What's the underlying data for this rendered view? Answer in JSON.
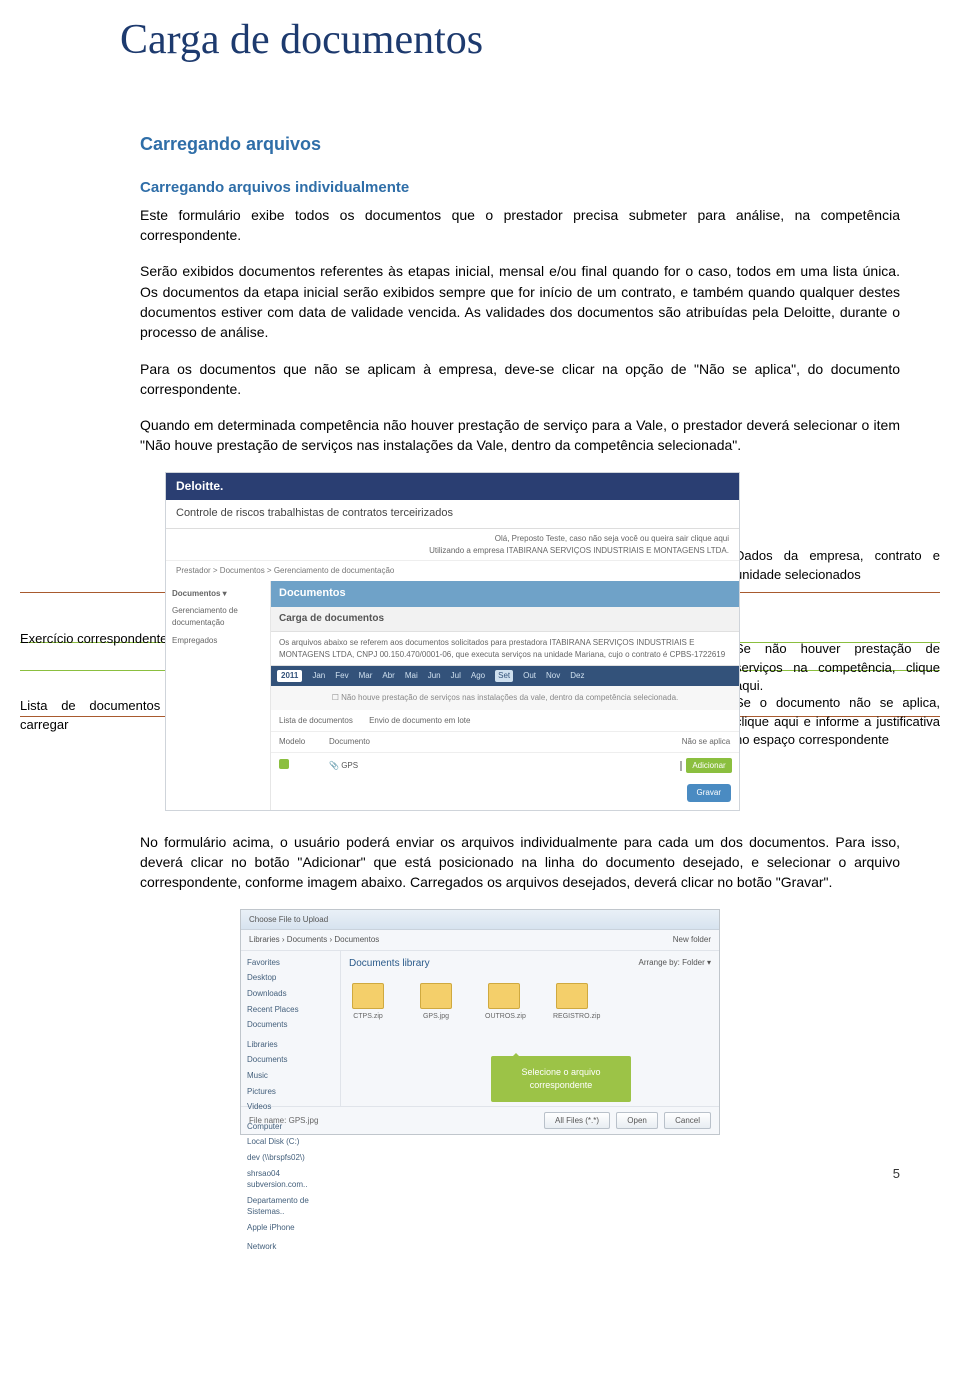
{
  "colors": {
    "title": "#1d3a6e",
    "heading": "#2f6ea8",
    "guide_green": "#8bbf3f",
    "guide_orange": "#a85a2e",
    "deloitte_bar": "#2a3e72",
    "panel_header": "#6fa2c8",
    "months_bar": "#33527a",
    "balloon": "#9cc347"
  },
  "title": "Carga de documentos",
  "h2": "Carregando arquivos",
  "h3": "Carregando arquivos individualmente",
  "para1": "Este formulário exibe todos os documentos que o prestador precisa submeter para análise, na competência correspondente.",
  "para2": "Serão exibidos documentos referentes às etapas inicial, mensal e/ou final quando for o caso, todos em uma lista única. Os documentos da etapa inicial serão exibidos sempre que for início de um contrato, e também quando qualquer destes documentos estiver com data de validade vencida. As validades dos documentos são atribuídas pela Deloitte, durante o processo de análise.",
  "para3": "Para os documentos que não se aplicam à empresa, deve-se clicar na opção de \"Não se aplica\", do documento correspondente.",
  "para4": "Quando em determinada competência não houver prestação de serviço para a Vale, o prestador deverá selecionar o item \"Não houve prestação de serviços nas instalações da Vale, dentro da competência selecionada\".",
  "shot": {
    "brand": "Deloitte.",
    "subtitle": "Controle de riscos trabalhistas de contratos terceirizados",
    "greet1": "Olá, Preposto Teste, caso não seja você ou queira sair clique aqui",
    "greet2": "Utilizando a empresa ITABIRANA SERVIÇOS INDUSTRIAIS E MONTAGENS LTDA.",
    "crumb": "Prestador > Documentos > Gerenciamento de documentação",
    "side_label1": "Documentos ▾",
    "side_item1": "Gerenciamento de documentação",
    "side_item2": "Empregados",
    "panel_title": "Documentos",
    "panel_sub": "Carga de documentos",
    "panel_desc": "Os arquivos abaixo se referem aos documentos solicitados para prestadora ITABIRANA SERVIÇOS INDUSTRIAIS E MONTAGENS LTDA, CNPJ 00.150.470/0001-06, que executa serviços na unidade Mariana, cujo o contrato é CPBS-1722619",
    "year": "2011",
    "months": [
      "Jan",
      "Fev",
      "Mar",
      "Abr",
      "Mai",
      "Jun",
      "Jul",
      "Ago",
      "Set",
      "Out",
      "Nov",
      "Dez"
    ],
    "month_selected_index": 8,
    "no_service": "Não houve prestação de serviços nas instalações da vale, dentro da competência selecionada.",
    "tab1": "Lista de documentos",
    "tab2": "Envio de documento em lote",
    "col_model": "Modelo",
    "col_doc": "Documento",
    "col_na": "Não se aplica",
    "row_doc": "GPS",
    "btn_add": "Adicionar",
    "btn_save": "Gravar"
  },
  "annos": {
    "left1": "Exercício correspondente",
    "left2": "Lista de documentos para carregar",
    "right1": "Dados da empresa, contrato e unidade selecionados",
    "right2": "Se não houver prestação de serviços na competência, clique aqui.",
    "right3": "Se o documento não se aplica, clique aqui e informe a justificativa no espaço correspondente"
  },
  "para5": "No formulário acima, o usuário poderá enviar os arquivos individualmente para cada um dos documentos. Para isso, deverá clicar no botão \"Adicionar\" que está posicionado na linha do documento desejado, e selecionar o arquivo correspondente, conforme imagem abaixo. Carregados os arquivos desejados, deverá clicar no botão \"Gravar\".",
  "dialog": {
    "title": "Choose File to Upload",
    "path": "Libraries › Documents › Documentos",
    "new_folder": "New folder",
    "side": [
      "Favorites",
      "Desktop",
      "Downloads",
      "Recent Places",
      "Documents",
      "",
      "Libraries",
      "Documents",
      "Music",
      "Pictures",
      "Videos",
      "",
      "Computer",
      "Local Disk (C:)",
      "dev (\\\\brspfs02\\)",
      "shrsao04 subversion.com..",
      "Departamento de Sistemas..",
      "Apple iPhone",
      "",
      "Network"
    ],
    "lib_title": "Documents library",
    "arrange": "Arrange by: Folder ▾",
    "folders": [
      "CTPS.zip",
      "GPS.jpg",
      "OUTROS.zip",
      "REGISTRO.zip"
    ],
    "balloon": "Selecione o arquivo correspondente",
    "file_label": "File name:",
    "file_value": "GPS.jpg",
    "filter": "All Files (*.*)",
    "btn_open": "Open",
    "btn_cancel": "Cancel"
  },
  "page_number": "5"
}
